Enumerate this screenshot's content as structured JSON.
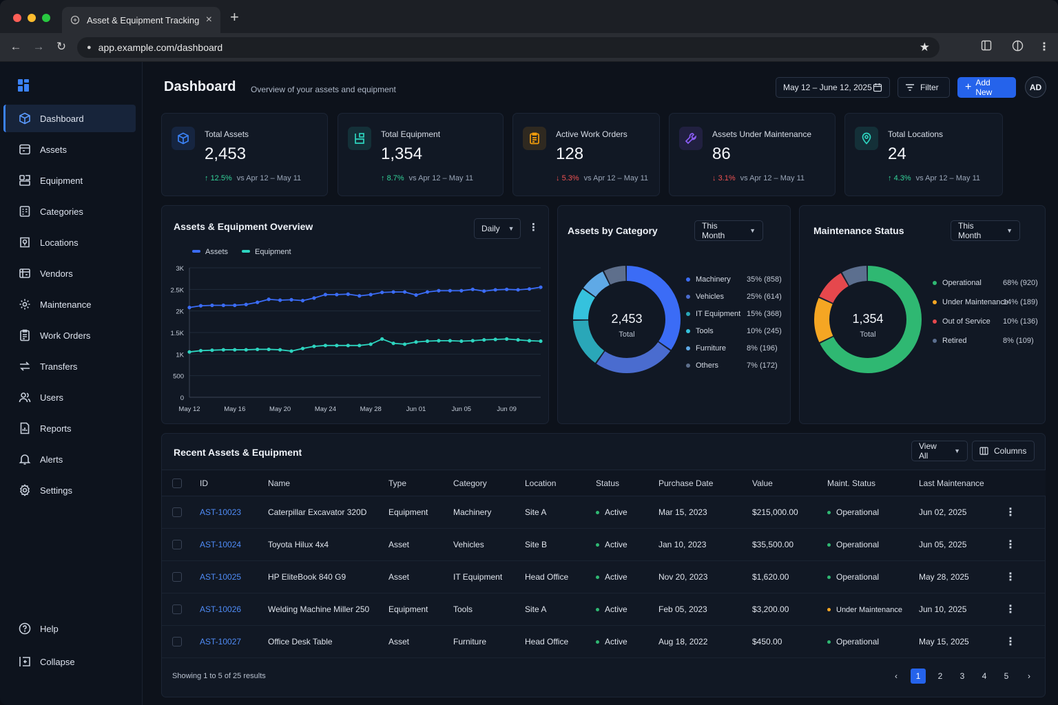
{
  "browser": {
    "tab_title": "Asset & Equipment Tracking",
    "url": "app.example.com/dashboard"
  },
  "sidebar": {
    "items": [
      {
        "label": "Dashboard",
        "icon": "cube-icon"
      },
      {
        "label": "Assets",
        "icon": "assets-icon"
      },
      {
        "label": "Equipment",
        "icon": "equipment-icon"
      },
      {
        "label": "Categories",
        "icon": "categories-icon"
      },
      {
        "label": "Locations",
        "icon": "location-icon"
      },
      {
        "label": "Vendors",
        "icon": "vendor-icon"
      },
      {
        "label": "Maintenance",
        "icon": "gear-icon"
      },
      {
        "label": "Work Orders",
        "icon": "clipboard-icon"
      },
      {
        "label": "Transfers",
        "icon": "transfer-icon"
      },
      {
        "label": "Users",
        "icon": "users-icon"
      },
      {
        "label": "Reports",
        "icon": "report-icon"
      },
      {
        "label": "Alerts",
        "icon": "bell-icon"
      },
      {
        "label": "Settings",
        "icon": "settings-icon"
      }
    ],
    "help_label": "Help",
    "collapse_label": "Collapse"
  },
  "header": {
    "title": "Dashboard",
    "subtitle": "Overview of your assets and equipment",
    "date_range": "May 12 – June 12, 2025",
    "filter_label": "Filter",
    "add_label": "Add New",
    "avatar_initials": "AD"
  },
  "stats": [
    {
      "label": "Total Assets",
      "value": "2,453",
      "delta": "12.5%",
      "direction": "up",
      "period": "vs Apr 12 – May 11",
      "color": "#3b82f6"
    },
    {
      "label": "Total Equipment",
      "value": "1,354",
      "delta": "8.7%",
      "direction": "up",
      "period": "vs Apr 12 – May 11",
      "color": "#2dd4bf"
    },
    {
      "label": "Active Work Orders",
      "value": "128",
      "delta": "5.3%",
      "direction": "down",
      "period": "vs Apr 12 – May 11",
      "color": "#f59e0b"
    },
    {
      "label": "Assets Under Maintenance",
      "value": "86",
      "delta": "3.1%",
      "direction": "down",
      "period": "vs Apr 12 – May 11",
      "color": "#8b5cf6"
    },
    {
      "label": "Total Locations",
      "value": "24",
      "delta": "4.3%",
      "direction": "up",
      "period": "vs Apr 12 – May 11",
      "color": "#2dd4bf"
    }
  ],
  "overview": {
    "title": "Assets & Equipment Overview",
    "interval": "Daily"
  },
  "chart_data": [
    {
      "type": "line",
      "legend_placement": "top-left",
      "grid": true,
      "ylim": [
        0,
        3000
      ],
      "y_ticks": [
        "0",
        "500",
        "1K",
        "1.5K",
        "2K",
        "2.5K",
        "3K"
      ],
      "x_ticks": [
        "May 12",
        "May 16",
        "May 20",
        "May 24",
        "May 28",
        "Jun 01",
        "Jun 05",
        "Jun 09"
      ],
      "x": [
        "May 12",
        "May 13",
        "May 14",
        "May 15",
        "May 16",
        "May 17",
        "May 18",
        "May 19",
        "May 20",
        "May 21",
        "May 22",
        "May 23",
        "May 24",
        "May 25",
        "May 26",
        "May 27",
        "May 28",
        "May 29",
        "May 30",
        "May 31",
        "Jun 01",
        "Jun 02",
        "Jun 03",
        "Jun 04",
        "Jun 05",
        "Jun 06",
        "Jun 07",
        "Jun 08",
        "Jun 09",
        "Jun 10",
        "Jun 11",
        "Jun 12"
      ],
      "series": [
        {
          "name": "Assets",
          "color": "#3b6cf6",
          "values": [
            2080,
            2120,
            2130,
            2130,
            2130,
            2150,
            2200,
            2270,
            2250,
            2260,
            2240,
            2300,
            2380,
            2380,
            2390,
            2350,
            2380,
            2430,
            2440,
            2440,
            2370,
            2440,
            2470,
            2470,
            2470,
            2500,
            2460,
            2490,
            2500,
            2490,
            2510,
            2550
          ]
        },
        {
          "name": "Equipment",
          "color": "#2dd4bf",
          "values": [
            1050,
            1080,
            1090,
            1100,
            1100,
            1100,
            1110,
            1110,
            1100,
            1070,
            1130,
            1180,
            1200,
            1200,
            1200,
            1200,
            1230,
            1350,
            1250,
            1230,
            1280,
            1300,
            1310,
            1310,
            1300,
            1310,
            1330,
            1340,
            1350,
            1330,
            1310,
            1300
          ]
        }
      ]
    },
    {
      "type": "pie",
      "title": "Assets by Category",
      "period": "This Month",
      "center_value": "2,453",
      "center_label": "Total",
      "slices": [
        {
          "label": "Machinery",
          "percent": 35,
          "count": 858,
          "display": "35% (858)",
          "color": "#3b6cf6"
        },
        {
          "label": "Vehicles",
          "percent": 25,
          "count": 614,
          "display": "25% (614)",
          "color": "#4a6ccf"
        },
        {
          "label": "IT Equipment",
          "percent": 15,
          "count": 368,
          "display": "15% (368)",
          "color": "#2aa7b8"
        },
        {
          "label": "Tools",
          "percent": 10,
          "count": 245,
          "display": "10% (245)",
          "color": "#35c2dd"
        },
        {
          "label": "Furniture",
          "percent": 8,
          "count": 196,
          "display": "8% (196)",
          "color": "#5fa9e6"
        },
        {
          "label": "Others",
          "percent": 7,
          "count": 172,
          "display": "7% (172)",
          "color": "#5e6f8c"
        }
      ]
    },
    {
      "type": "pie",
      "title": "Maintenance Status",
      "period": "This Month",
      "center_value": "1,354",
      "center_label": "Total",
      "slices": [
        {
          "label": "Operational",
          "percent": 68,
          "count": 920,
          "display": "68% (920)",
          "color": "#2fb872"
        },
        {
          "label": "Under Maintenance",
          "percent": 14,
          "count": 189,
          "display": "14% (189)",
          "color": "#f5a623"
        },
        {
          "label": "Out of Service",
          "percent": 10,
          "count": 136,
          "display": "10% (136)",
          "color": "#e5484d"
        },
        {
          "label": "Retired",
          "percent": 8,
          "count": 109,
          "display": "8% (109)",
          "color": "#5c6f8f"
        }
      ]
    }
  ],
  "recent": {
    "title": "Recent Assets & Equipment",
    "view_all_label": "View All",
    "columns_label": "Columns",
    "headers": [
      "ID",
      "Name",
      "Type",
      "Category",
      "Location",
      "Status",
      "Purchase Date",
      "Value",
      "Maint. Status",
      "Last Maintenance"
    ],
    "rows": [
      {
        "id": "AST-10023",
        "name": "Caterpillar Excavator 320D",
        "type": "Equipment",
        "category": "Machinery",
        "location": "Site A",
        "status": "Active",
        "purchase": "Mar 15, 2023",
        "value": "$215,000.00",
        "maint": "Operational",
        "maint_color": "#2fb872",
        "last": "Jun 02, 2025"
      },
      {
        "id": "AST-10024",
        "name": "Toyota Hilux 4x4",
        "type": "Asset",
        "category": "Vehicles",
        "location": "Site B",
        "status": "Active",
        "purchase": "Jan 10, 2023",
        "value": "$35,500.00",
        "maint": "Operational",
        "maint_color": "#2fb872",
        "last": "Jun 05, 2025"
      },
      {
        "id": "AST-10025",
        "name": "HP EliteBook 840 G9",
        "type": "Asset",
        "category": "IT Equipment",
        "location": "Head Office",
        "status": "Active",
        "purchase": "Nov 20, 2023",
        "value": "$1,620.00",
        "maint": "Operational",
        "maint_color": "#2fb872",
        "last": "May 28, 2025"
      },
      {
        "id": "AST-10026",
        "name": "Welding Machine Miller 250",
        "type": "Equipment",
        "category": "Tools",
        "location": "Site A",
        "status": "Active",
        "purchase": "Feb 05, 2023",
        "value": "$3,200.00",
        "maint": "Under Maintenance",
        "maint_color": "#f5a623",
        "last": "Jun 10, 2025"
      },
      {
        "id": "AST-10027",
        "name": "Office Desk Table",
        "type": "Asset",
        "category": "Furniture",
        "location": "Head Office",
        "status": "Active",
        "purchase": "Aug 18, 2022",
        "value": "$450.00",
        "maint": "Operational",
        "maint_color": "#2fb872",
        "last": "May 15, 2025"
      }
    ],
    "footer": "Showing 1 to 5 of 25 results",
    "pages": [
      "1",
      "2",
      "3",
      "4",
      "5"
    ],
    "current_page": "1"
  }
}
